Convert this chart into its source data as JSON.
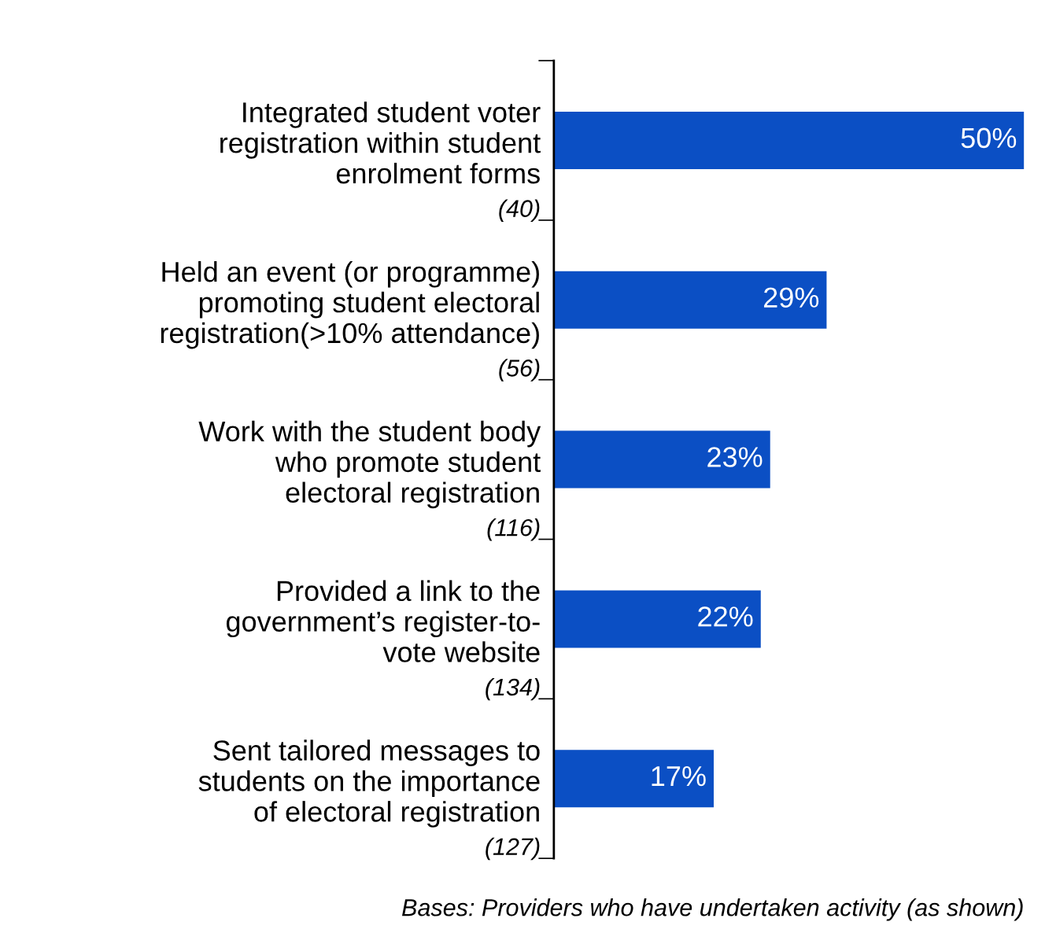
{
  "chart_data": {
    "type": "bar",
    "orientation": "horizontal",
    "categories": [
      "Integrated student voter\nregistration within student\nenrolment forms",
      "Held an event (or programme)\npromoting student electoral\nregistration(>10% attendance)",
      "Work with the student body\nwho promote student\nelectoral registration",
      "Provided a link to the\ngovernment’s register-to-\nvote website",
      "Sent tailored messages to\nstudents on the importance\nof electoral registration"
    ],
    "values": [
      50,
      29,
      23,
      22,
      17
    ],
    "value_labels": [
      "50%",
      "29%",
      "23%",
      "22%",
      "17%"
    ],
    "color": "#0b4fc4",
    "annotations": [
      "(40)",
      "(56)",
      "(116)",
      "(134)",
      "(127)",
      "Bases: Providers who have undertaken activity (as shown)"
    ],
    "grid": false,
    "legend": false
  }
}
